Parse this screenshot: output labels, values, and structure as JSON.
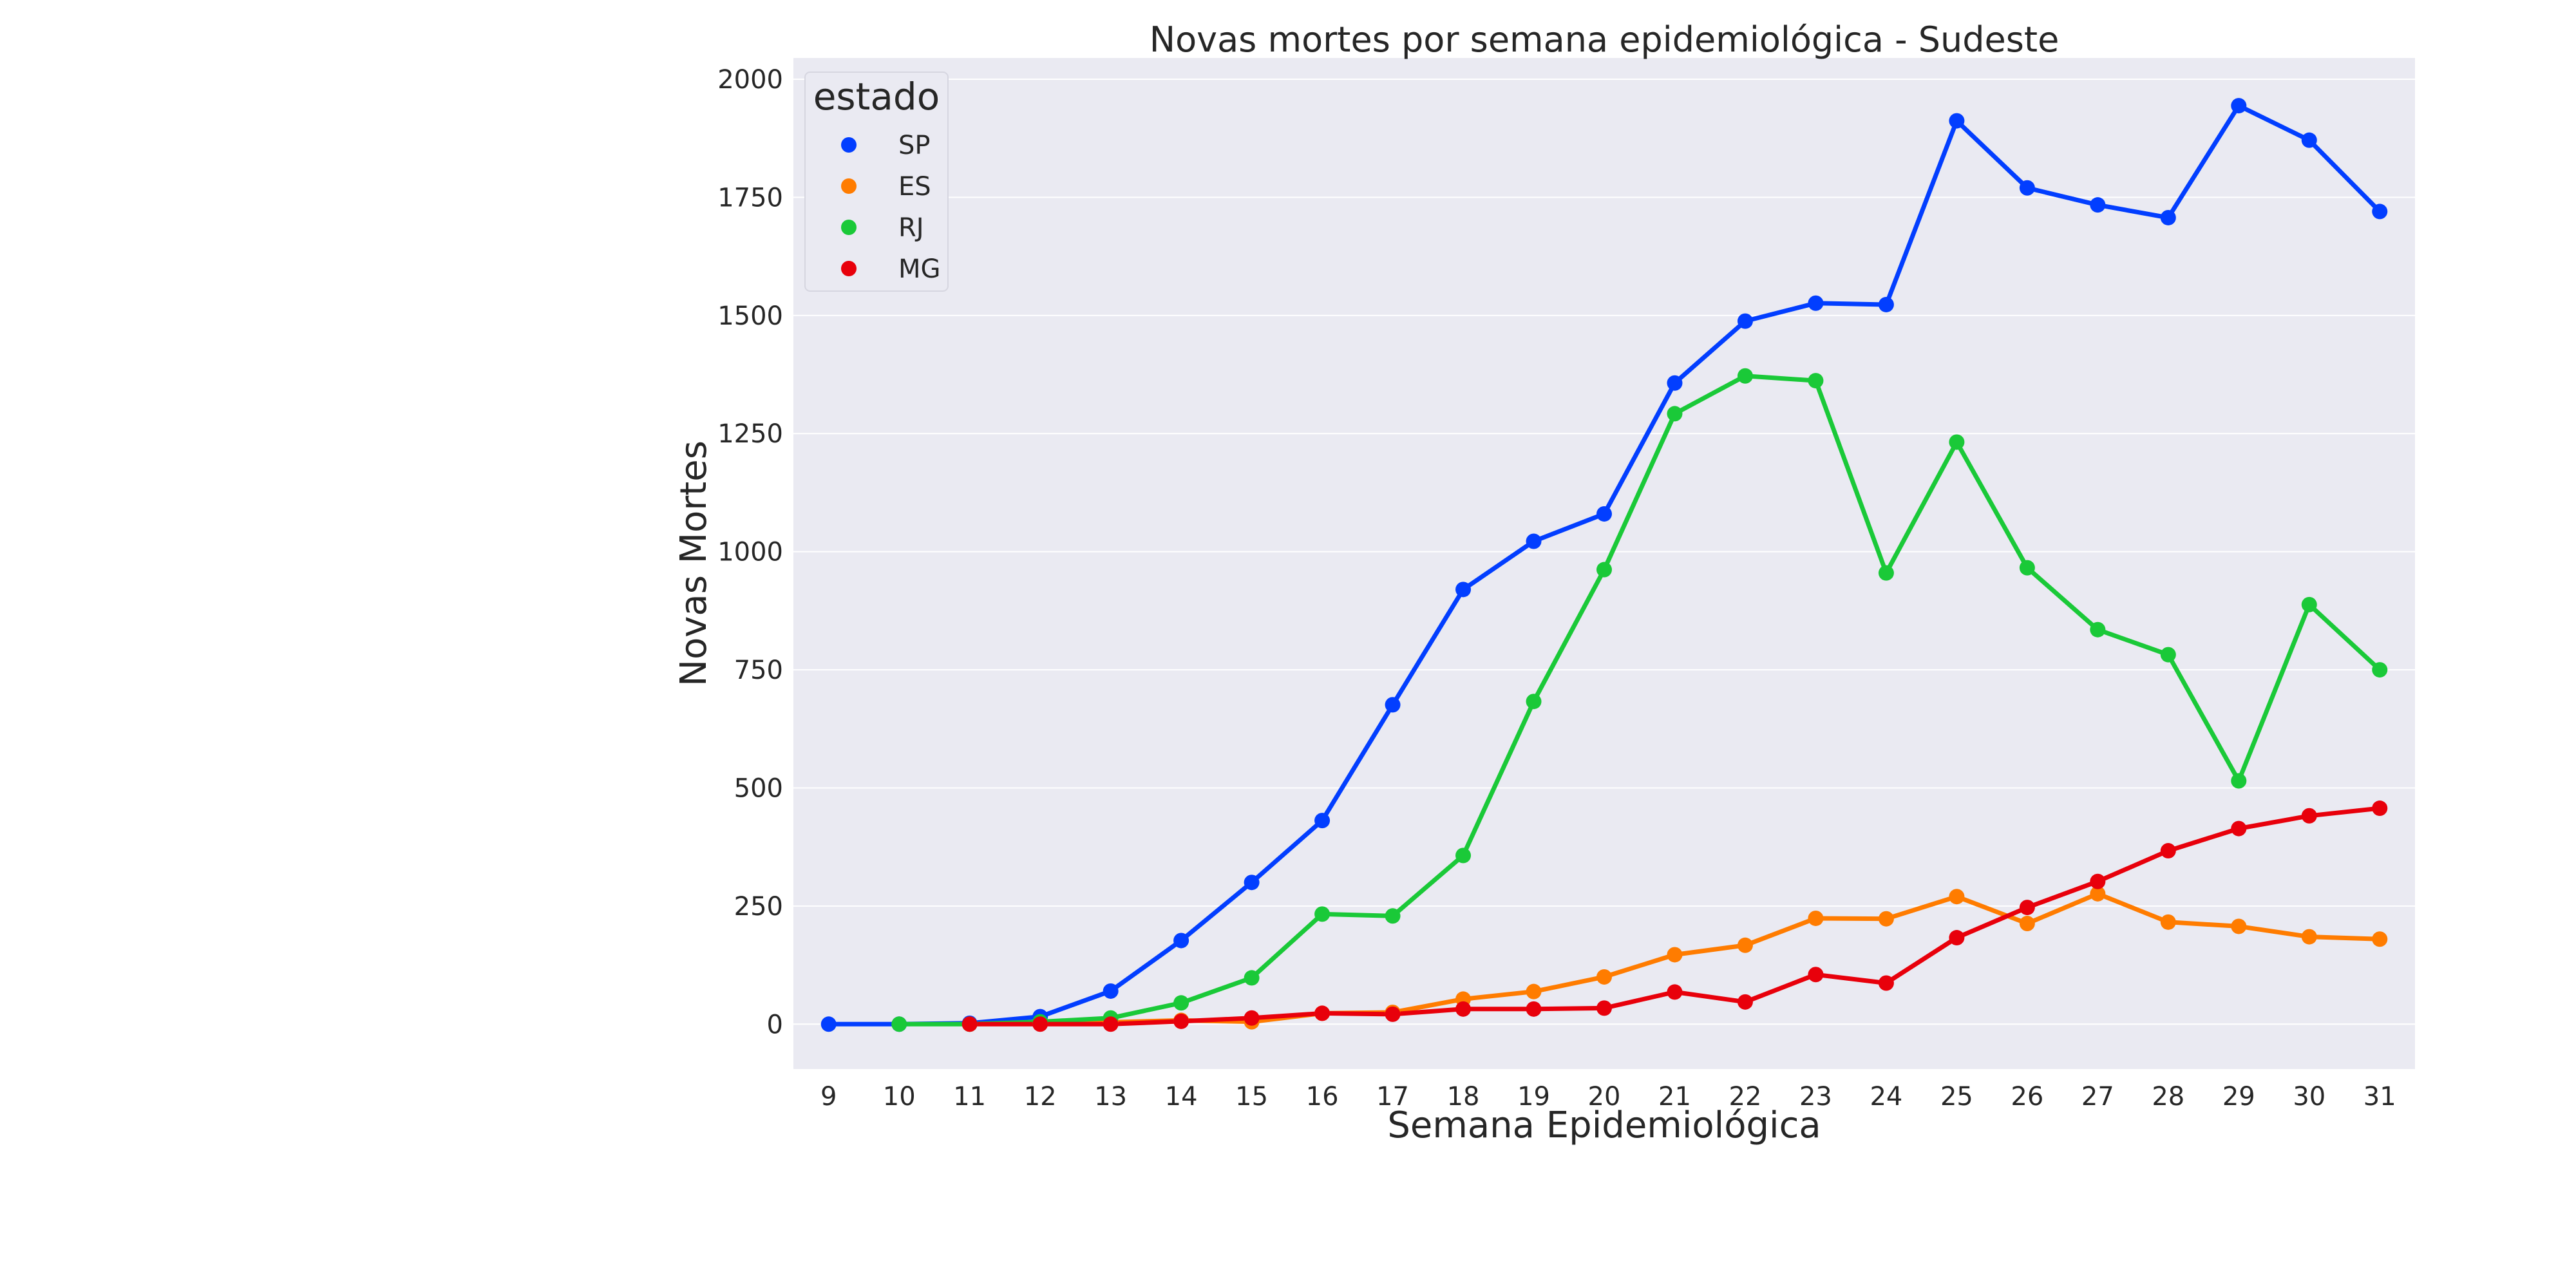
{
  "chart_data": {
    "type": "line",
    "title": "Novas mortes por semana epidemiológica - Sudeste",
    "xlabel": "Semana Epidemiológica",
    "ylabel": "Novas Mortes",
    "x": [
      9,
      10,
      11,
      12,
      13,
      14,
      15,
      16,
      17,
      18,
      19,
      20,
      21,
      22,
      23,
      24,
      25,
      26,
      27,
      28,
      29,
      30,
      31
    ],
    "x_tick_labels": [
      "9",
      "10",
      "11",
      "12",
      "13",
      "14",
      "15",
      "16",
      "17",
      "18",
      "19",
      "20",
      "21",
      "22",
      "23",
      "24",
      "25",
      "26",
      "27",
      "28",
      "29",
      "30",
      "31"
    ],
    "ylim": [
      -95,
      2045
    ],
    "y_ticks": [
      0,
      250,
      500,
      750,
      1000,
      1250,
      1500,
      1750,
      2000
    ],
    "y_tick_labels": [
      "0",
      "250",
      "500",
      "750",
      "1000",
      "1250",
      "1500",
      "1750",
      "2000"
    ],
    "grid": true,
    "legend": {
      "title": "estado",
      "placement": "top-left"
    },
    "series": [
      {
        "name": "SP",
        "color": "#023eff",
        "x": [
          9,
          10,
          11,
          12,
          13,
          14,
          15,
          16,
          17,
          18,
          19,
          20,
          21,
          22,
          23,
          24,
          25,
          26,
          27,
          28,
          29,
          30,
          31
        ],
        "values": [
          0,
          0,
          2,
          16,
          70,
          177,
          300,
          431,
          676,
          920,
          1022,
          1080,
          1357,
          1488,
          1526,
          1523,
          1912,
          1770,
          1734,
          1707,
          1944,
          1871,
          1720
        ]
      },
      {
        "name": "ES",
        "color": "#ff7c00",
        "x": [
          11,
          12,
          13,
          14,
          15,
          16,
          17,
          18,
          19,
          20,
          21,
          22,
          23,
          24,
          25,
          26,
          27,
          28,
          29,
          30,
          31
        ],
        "values": [
          0,
          2,
          4,
          8,
          5,
          23,
          25,
          53,
          69,
          100,
          147,
          167,
          224,
          223,
          270,
          213,
          276,
          216,
          207,
          185,
          180
        ]
      },
      {
        "name": "RJ",
        "color": "#1ac938",
        "x": [
          10,
          11,
          12,
          13,
          14,
          15,
          16,
          17,
          18,
          19,
          20,
          21,
          22,
          23,
          24,
          25,
          26,
          27,
          28,
          29,
          30,
          31
        ],
        "values": [
          0,
          0,
          5,
          13,
          45,
          98,
          233,
          229,
          357,
          683,
          962,
          1292,
          1372,
          1362,
          955,
          1232,
          966,
          835,
          782,
          515,
          888,
          750
        ]
      },
      {
        "name": "MG",
        "color": "#e8000b",
        "x": [
          11,
          12,
          13,
          14,
          15,
          16,
          17,
          18,
          19,
          20,
          21,
          22,
          23,
          24,
          25,
          26,
          27,
          28,
          29,
          30,
          31
        ],
        "values": [
          0,
          0,
          0,
          6,
          13,
          23,
          21,
          32,
          32,
          34,
          68,
          47,
          105,
          87,
          183,
          247,
          302,
          367,
          414,
          441,
          457
        ]
      }
    ]
  }
}
